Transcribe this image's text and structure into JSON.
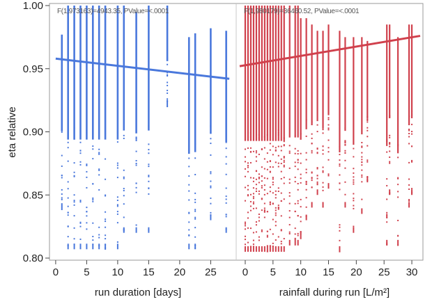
{
  "chart_data": [
    {
      "type": "scatter",
      "panel": "left",
      "stat_text": "F(1,973163)=4943.35, PValue=<.0001",
      "xlabel": "run duration [days]",
      "ylabel": "eta relative",
      "xlim": [
        -1,
        29
      ],
      "ylim": [
        0.8,
        1.0
      ],
      "x_ticks": [
        "0",
        "5",
        "10",
        "15",
        "20",
        "25"
      ],
      "y_ticks": [
        "0.80",
        "0.85",
        "0.90",
        "0.95",
        "1.00"
      ],
      "color": "#4a78dc",
      "fit_line": {
        "x": [
          0,
          28
        ],
        "y": [
          0.958,
          0.942
        ]
      },
      "columns": [
        {
          "x": 1,
          "ymin": 0.838,
          "ymax": 0.977
        },
        {
          "x": 2,
          "ymin": 0.807,
          "ymax": 1.0
        },
        {
          "x": 3,
          "ymin": 0.807,
          "ymax": 1.0
        },
        {
          "x": 4,
          "ymin": 0.807,
          "ymax": 1.0
        },
        {
          "x": 5,
          "ymin": 0.807,
          "ymax": 1.0
        },
        {
          "x": 6,
          "ymin": 0.807,
          "ymax": 1.0
        },
        {
          "x": 7,
          "ymin": 0.807,
          "ymax": 1.0
        },
        {
          "x": 8,
          "ymin": 0.807,
          "ymax": 1.0
        },
        {
          "x": 10,
          "ymin": 0.807,
          "ymax": 1.0
        },
        {
          "x": 11,
          "ymin": 0.82,
          "ymax": 1.0
        },
        {
          "x": 13,
          "ymin": 0.82,
          "ymax": 0.995
        },
        {
          "x": 15,
          "ymin": 0.82,
          "ymax": 1.0
        },
        {
          "x": 18,
          "ymin": 0.92,
          "ymax": 1.0
        },
        {
          "x": 21.5,
          "ymin": 0.807,
          "ymax": 0.975
        },
        {
          "x": 22.5,
          "ymin": 0.807,
          "ymax": 0.978
        },
        {
          "x": 25,
          "ymin": 0.83,
          "ymax": 0.982
        },
        {
          "x": 27.5,
          "ymin": 0.82,
          "ymax": 0.98
        }
      ]
    },
    {
      "type": "scatter",
      "panel": "right",
      "stat_text": "F(1,980179)=36460.52, PValue=<.0001",
      "xlabel": "rainfall during run [L/m²]",
      "ylabel": "",
      "xlim": [
        -1.5,
        32
      ],
      "ylim": [
        0.8,
        1.0
      ],
      "x_ticks": [
        "0",
        "5",
        "10",
        "15",
        "20",
        "25",
        "30"
      ],
      "color": "#d0404c",
      "fit_line": {
        "x": [
          -1,
          31.5
        ],
        "y": [
          0.952,
          0.976
        ]
      },
      "columns": [
        {
          "x": 0,
          "ymin": 0.805,
          "ymax": 1.0
        },
        {
          "x": 0.5,
          "ymin": 0.805,
          "ymax": 1.0
        },
        {
          "x": 1,
          "ymin": 0.805,
          "ymax": 1.0
        },
        {
          "x": 1.5,
          "ymin": 0.805,
          "ymax": 1.0
        },
        {
          "x": 2,
          "ymin": 0.805,
          "ymax": 1.0
        },
        {
          "x": 2.5,
          "ymin": 0.805,
          "ymax": 1.0
        },
        {
          "x": 3,
          "ymin": 0.805,
          "ymax": 1.0
        },
        {
          "x": 3.5,
          "ymin": 0.805,
          "ymax": 1.0
        },
        {
          "x": 4,
          "ymin": 0.805,
          "ymax": 1.0
        },
        {
          "x": 4.5,
          "ymin": 0.805,
          "ymax": 1.0
        },
        {
          "x": 5,
          "ymin": 0.805,
          "ymax": 1.0
        },
        {
          "x": 5.5,
          "ymin": 0.805,
          "ymax": 1.0
        },
        {
          "x": 6,
          "ymin": 0.805,
          "ymax": 1.0
        },
        {
          "x": 6.5,
          "ymin": 0.805,
          "ymax": 1.0
        },
        {
          "x": 7,
          "ymin": 0.805,
          "ymax": 1.0
        },
        {
          "x": 8,
          "ymin": 0.81,
          "ymax": 1.0
        },
        {
          "x": 9,
          "ymin": 0.81,
          "ymax": 1.0
        },
        {
          "x": 9.5,
          "ymin": 0.81,
          "ymax": 1.0
        },
        {
          "x": 10,
          "ymin": 0.815,
          "ymax": 0.99
        },
        {
          "x": 11,
          "ymin": 0.83,
          "ymax": 0.99
        },
        {
          "x": 12,
          "ymin": 0.84,
          "ymax": 0.985
        },
        {
          "x": 13,
          "ymin": 0.85,
          "ymax": 0.98
        },
        {
          "x": 14,
          "ymin": 0.84,
          "ymax": 0.98
        },
        {
          "x": 15,
          "ymin": 0.855,
          "ymax": 0.985
        },
        {
          "x": 17,
          "ymin": 0.805,
          "ymax": 0.98
        },
        {
          "x": 18,
          "ymin": 0.84,
          "ymax": 0.975
        },
        {
          "x": 19.5,
          "ymin": 0.82,
          "ymax": 0.975
        },
        {
          "x": 21,
          "ymin": 0.835,
          "ymax": 0.975
        },
        {
          "x": 22,
          "ymin": 0.86,
          "ymax": 0.972
        },
        {
          "x": 25.5,
          "ymin": 0.81,
          "ymax": 0.985
        },
        {
          "x": 26,
          "ymin": 0.85,
          "ymax": 0.985
        },
        {
          "x": 27.5,
          "ymin": 0.81,
          "ymax": 0.975
        },
        {
          "x": 29.5,
          "ymin": 0.84,
          "ymax": 0.985
        },
        {
          "x": 30,
          "ymin": 0.85,
          "ymax": 0.985
        }
      ]
    }
  ]
}
